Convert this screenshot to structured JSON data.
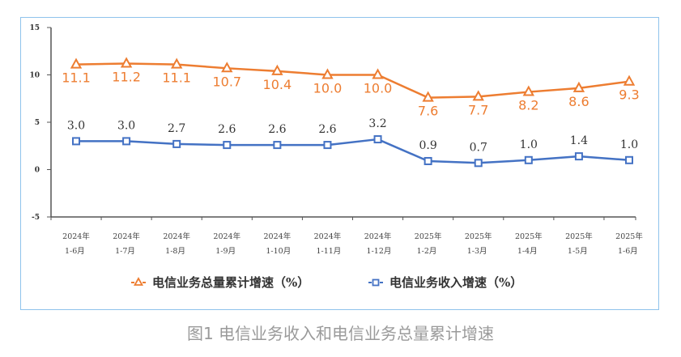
{
  "chart_data": {
    "type": "line",
    "title": "",
    "xlabel": "",
    "ylabel": "",
    "ylim": [
      -5,
      15
    ],
    "yticks": [
      "15",
      "10",
      "5",
      "0",
      "-5"
    ],
    "ytick_values": [
      15,
      10,
      5,
      0,
      -5
    ],
    "grid": false,
    "legend_position": "bottom",
    "categories": [
      [
        "2024年",
        "1-6月"
      ],
      [
        "2024年",
        "1-7月"
      ],
      [
        "2024年",
        "1-8月"
      ],
      [
        "2024年",
        "1-9月"
      ],
      [
        "2024年",
        "1-10月"
      ],
      [
        "2024年",
        "1-11月"
      ],
      [
        "2024年",
        "1-12月"
      ],
      [
        "2025年",
        "1-2月"
      ],
      [
        "2025年",
        "1-3月"
      ],
      [
        "2025年",
        "1-4月"
      ],
      [
        "2025年",
        "1-5月"
      ],
      [
        "2025年",
        "1-6月"
      ]
    ],
    "series": [
      {
        "name": "电信业务总量累计增速（%）",
        "marker": "triangle",
        "color": "#ed7d31",
        "values": [
          11.1,
          11.2,
          11.1,
          10.7,
          10.4,
          10.0,
          10.0,
          7.6,
          7.7,
          8.2,
          8.6,
          9.3
        ],
        "labels": [
          "11.1",
          "11.2",
          "11.1",
          "10.7",
          "10.4",
          "10.0",
          "10.0",
          "7.6",
          "7.7",
          "8.2",
          "8.6",
          "9.3"
        ]
      },
      {
        "name": "电信业务收入增速（%）",
        "marker": "square",
        "color": "#4472c4",
        "values": [
          3.0,
          3.0,
          2.7,
          2.6,
          2.6,
          2.6,
          3.2,
          0.9,
          0.7,
          1.0,
          1.4,
          1.0
        ],
        "labels": [
          "3.0",
          "3.0",
          "2.7",
          "2.6",
          "2.6",
          "2.6",
          "3.2",
          "0.9",
          "0.7",
          "1.0",
          "1.4",
          "1.0"
        ]
      }
    ]
  },
  "caption": "图1 电信业务收入和电信业务总量累计增速"
}
